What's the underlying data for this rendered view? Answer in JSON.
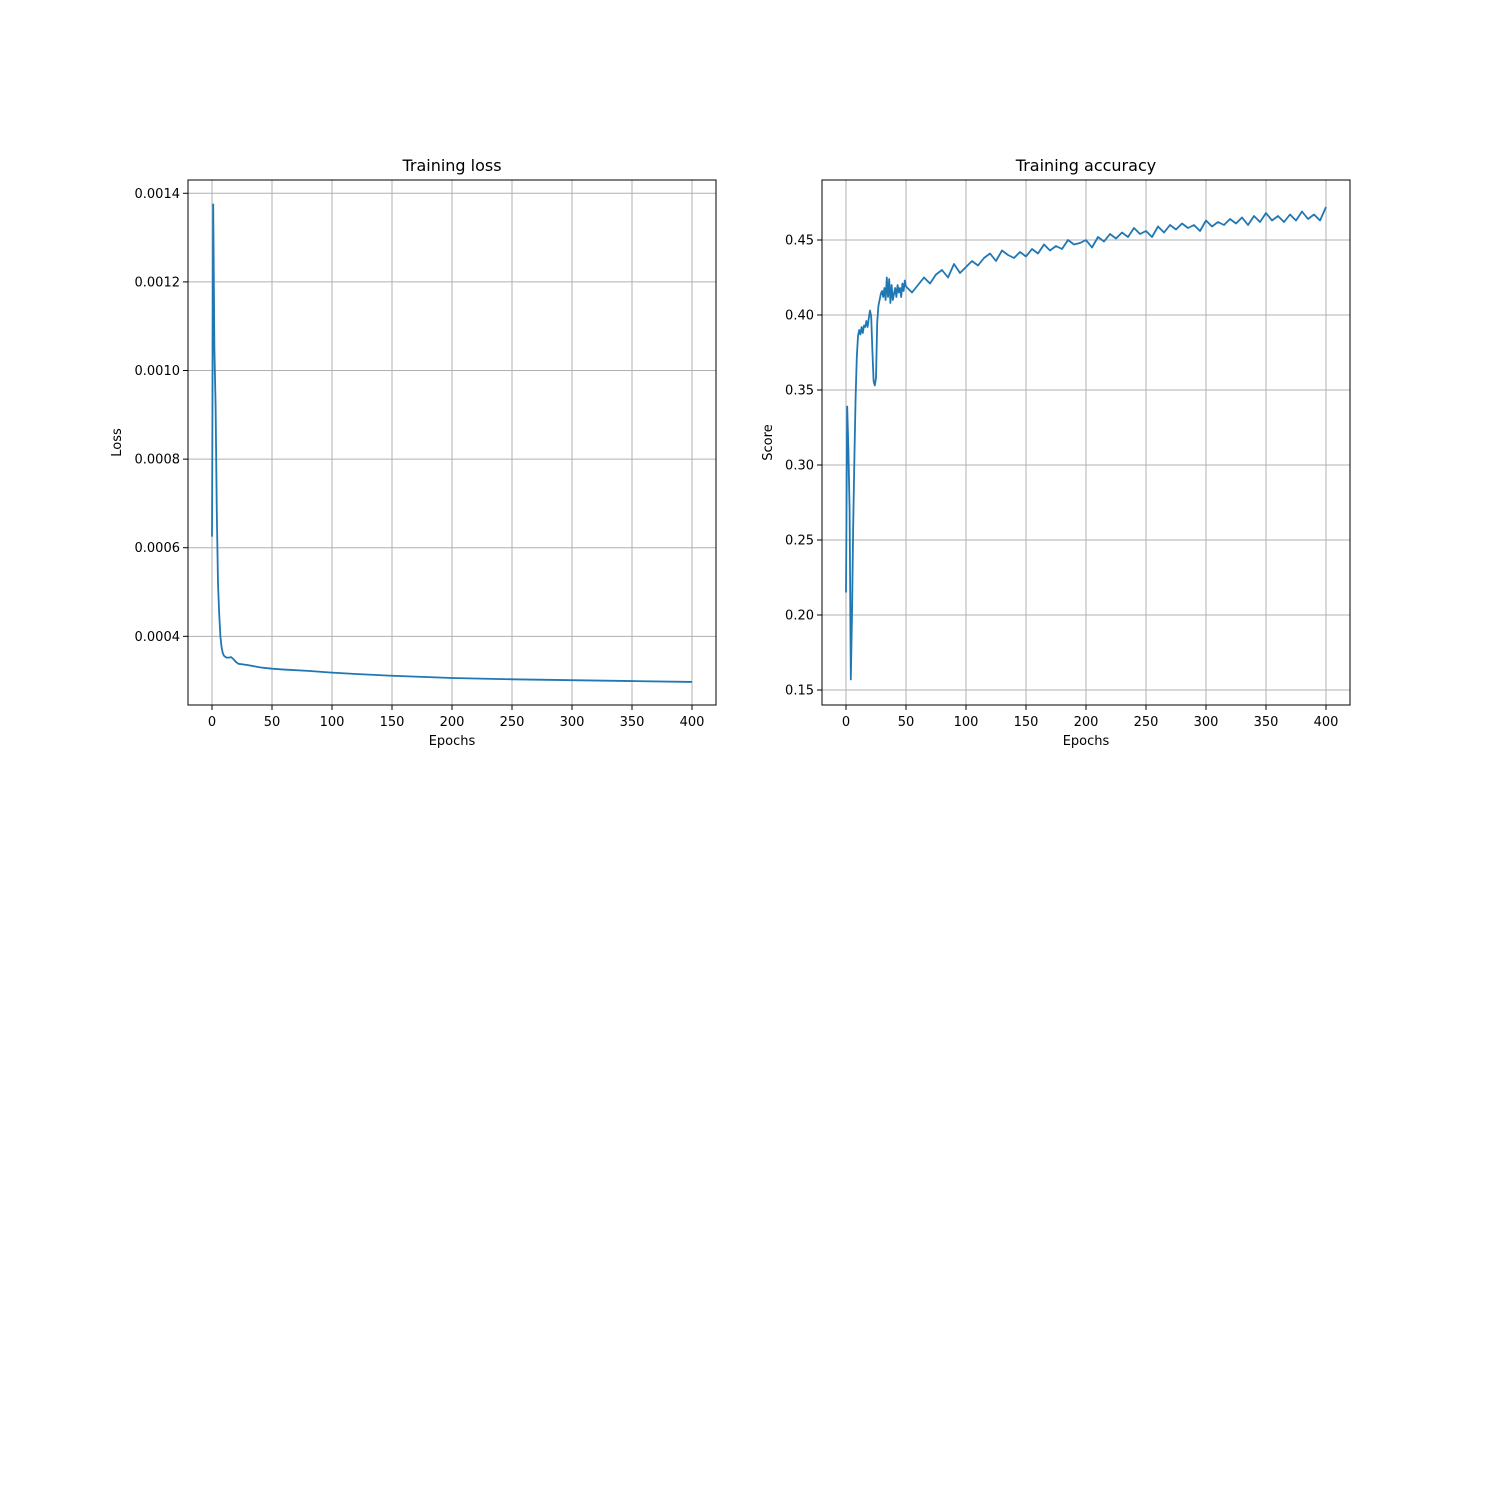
{
  "chart_data": [
    {
      "type": "line",
      "title": "Training loss",
      "xlabel": "Epochs",
      "ylabel": "Loss",
      "xlim": [
        -20,
        420
      ],
      "ylim": [
        0.000245,
        0.00143
      ],
      "xticks": [
        0,
        50,
        100,
        150,
        200,
        250,
        300,
        350,
        400
      ],
      "xtick_labels": [
        "0",
        "50",
        "100",
        "150",
        "200",
        "250",
        "300",
        "350",
        "400"
      ],
      "yticks": [
        0.0004,
        0.0006,
        0.0008,
        0.001,
        0.0012,
        0.0014
      ],
      "ytick_labels": [
        "0.0004",
        "0.0006",
        "0.0008",
        "0.0010",
        "0.0012",
        "0.0014"
      ],
      "grid": true,
      "color": "#1f77b4",
      "series": [
        {
          "x": [
            0,
            1,
            2,
            3,
            4,
            5,
            6,
            7,
            8,
            9,
            10,
            12,
            14,
            16,
            18,
            20,
            22,
            25,
            30,
            40,
            50,
            60,
            80,
            100,
            120,
            150,
            200,
            250,
            300,
            350,
            400
          ],
          "y": [
            0.000625,
            0.001375,
            0.00105,
            0.00092,
            0.00068,
            0.00052,
            0.00045,
            0.0004,
            0.000375,
            0.000362,
            0.000356,
            0.000352,
            0.000352,
            0.000353,
            0.000348,
            0.000342,
            0.000338,
            0.000337,
            0.000335,
            0.00033,
            0.000327,
            0.000325,
            0.000322,
            0.000318,
            0.000315,
            0.000311,
            0.000306,
            0.000303,
            0.000301,
            0.000299,
            0.000297
          ]
        }
      ]
    },
    {
      "type": "line",
      "title": "Training accuracy",
      "xlabel": "Epochs",
      "ylabel": "Score",
      "xlim": [
        -20,
        420
      ],
      "ylim": [
        0.14,
        0.49
      ],
      "xticks": [
        0,
        50,
        100,
        150,
        200,
        250,
        300,
        350,
        400
      ],
      "xtick_labels": [
        "0",
        "50",
        "100",
        "150",
        "200",
        "250",
        "300",
        "350",
        "400"
      ],
      "yticks": [
        0.15,
        0.2,
        0.25,
        0.3,
        0.35,
        0.4,
        0.45
      ],
      "ytick_labels": [
        "0.15",
        "0.20",
        "0.25",
        "0.30",
        "0.35",
        "0.40",
        "0.45"
      ],
      "grid": true,
      "color": "#1f77b4",
      "series": [
        {
          "x": [
            0,
            1,
            2,
            3,
            4,
            5,
            6,
            7,
            8,
            9,
            10,
            11,
            12,
            13,
            14,
            15,
            16,
            17,
            18,
            19,
            20,
            21,
            22,
            23,
            24,
            25,
            26,
            27,
            28,
            29,
            30,
            31,
            32,
            33,
            34,
            35,
            36,
            37,
            38,
            39,
            40,
            41,
            42,
            43,
            44,
            45,
            46,
            47,
            48,
            49,
            50,
            55,
            60,
            65,
            70,
            75,
            80,
            85,
            90,
            95,
            100,
            105,
            110,
            115,
            120,
            125,
            130,
            135,
            140,
            145,
            150,
            155,
            160,
            165,
            170,
            175,
            180,
            185,
            190,
            195,
            200,
            205,
            210,
            215,
            220,
            225,
            230,
            235,
            240,
            245,
            250,
            255,
            260,
            265,
            270,
            275,
            280,
            285,
            290,
            295,
            300,
            305,
            310,
            315,
            320,
            325,
            330,
            335,
            340,
            345,
            350,
            355,
            360,
            365,
            370,
            375,
            380,
            385,
            390,
            395,
            400
          ],
          "y": [
            0.215,
            0.339,
            0.31,
            0.27,
            0.157,
            0.2,
            0.26,
            0.305,
            0.345,
            0.372,
            0.386,
            0.39,
            0.387,
            0.392,
            0.388,
            0.393,
            0.392,
            0.396,
            0.392,
            0.398,
            0.403,
            0.399,
            0.376,
            0.356,
            0.353,
            0.358,
            0.395,
            0.406,
            0.41,
            0.414,
            0.416,
            0.412,
            0.418,
            0.41,
            0.425,
            0.412,
            0.424,
            0.408,
            0.42,
            0.41,
            0.414,
            0.418,
            0.412,
            0.42,
            0.415,
            0.418,
            0.412,
            0.421,
            0.416,
            0.423,
            0.419,
            0.415,
            0.42,
            0.425,
            0.421,
            0.427,
            0.43,
            0.425,
            0.434,
            0.428,
            0.432,
            0.436,
            0.433,
            0.438,
            0.441,
            0.436,
            0.443,
            0.44,
            0.438,
            0.442,
            0.439,
            0.444,
            0.441,
            0.447,
            0.443,
            0.446,
            0.444,
            0.45,
            0.447,
            0.448,
            0.45,
            0.445,
            0.452,
            0.449,
            0.454,
            0.451,
            0.455,
            0.452,
            0.458,
            0.454,
            0.456,
            0.452,
            0.459,
            0.455,
            0.46,
            0.457,
            0.461,
            0.458,
            0.46,
            0.456,
            0.463,
            0.459,
            0.462,
            0.46,
            0.464,
            0.461,
            0.465,
            0.46,
            0.466,
            0.462,
            0.468,
            0.463,
            0.466,
            0.462,
            0.467,
            0.463,
            0.469,
            0.464,
            0.467,
            0.463,
            0.472
          ]
        }
      ]
    }
  ]
}
